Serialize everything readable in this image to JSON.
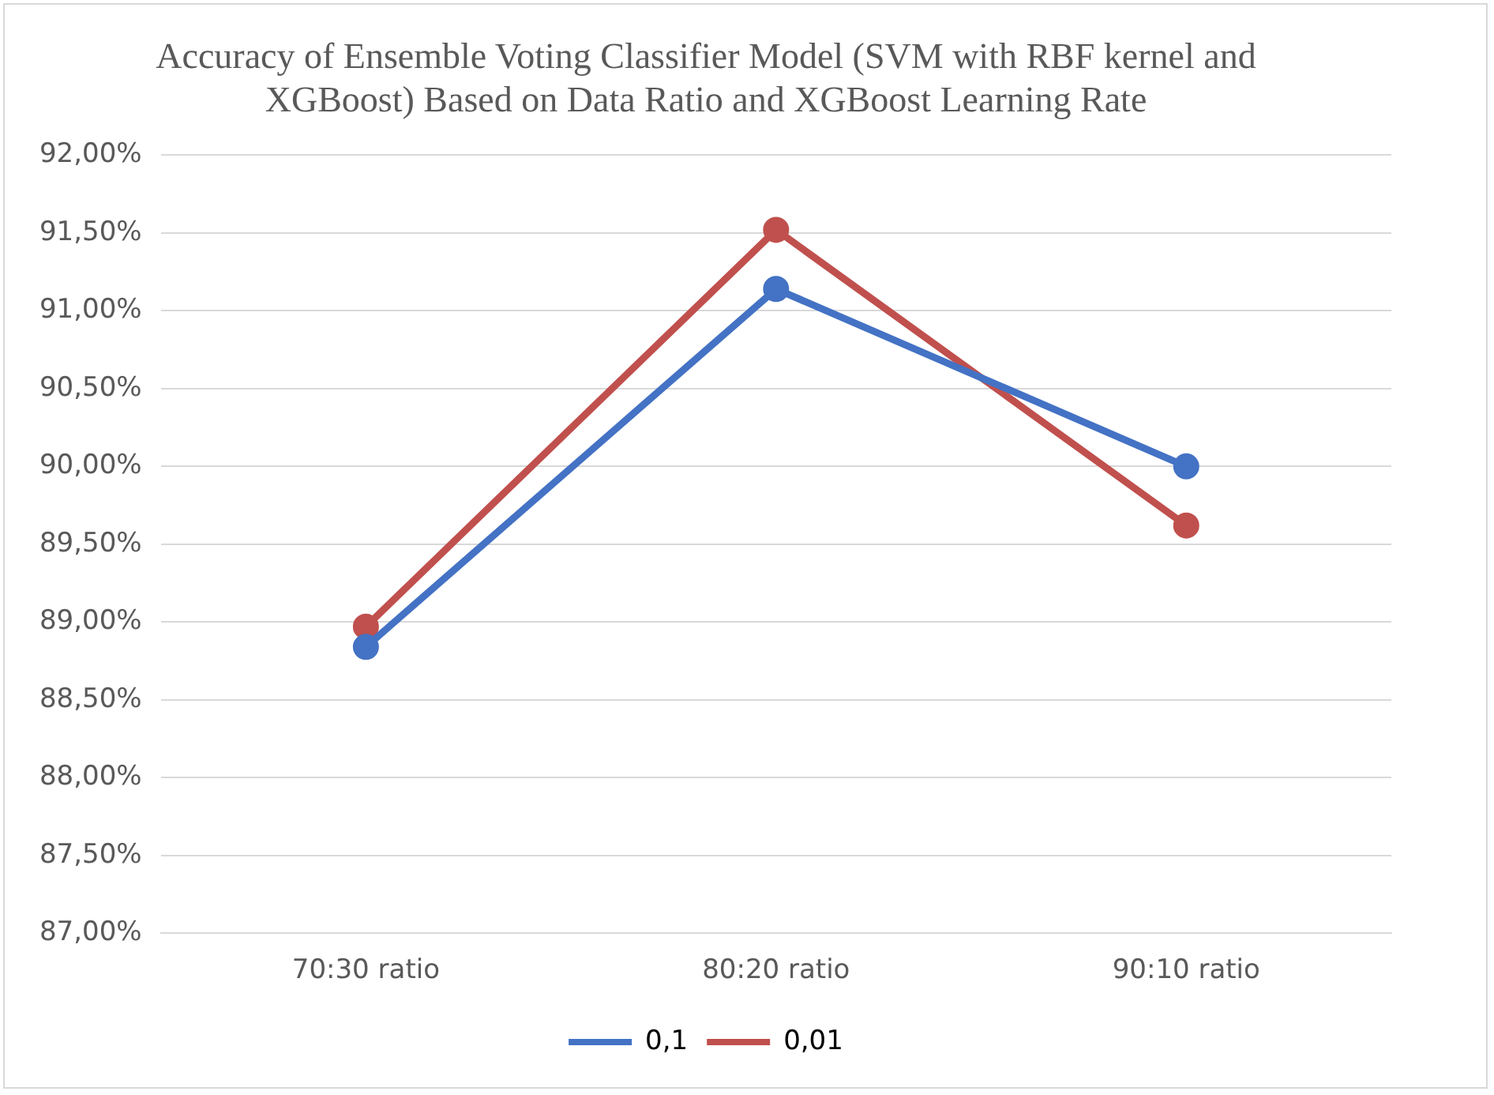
{
  "chart_data": {
    "type": "line",
    "title": "Accuracy of Ensemble Voting Classifier Model (SVM with RBF kernel and XGBoost) Based on Data Ratio and XGBoost Learning Rate",
    "categories": [
      "70:30 ratio",
      "80:20 ratio",
      "90:10 ratio"
    ],
    "series": [
      {
        "name": "0,1",
        "color": "#4472c4",
        "values": [
          88.84,
          91.14,
          90.0
        ]
      },
      {
        "name": "0,01",
        "color": "#c0504d",
        "values": [
          88.97,
          91.52,
          89.62
        ]
      }
    ],
    "ylim": [
      87,
      92
    ],
    "yticks": [
      {
        "value": 87,
        "label": "87,00%"
      },
      {
        "value": 87.5,
        "label": "87,50%"
      },
      {
        "value": 88,
        "label": "88,00%"
      },
      {
        "value": 88.5,
        "label": "88,50%"
      },
      {
        "value": 89,
        "label": "89,00%"
      },
      {
        "value": 89.5,
        "label": "89,50%"
      },
      {
        "value": 90,
        "label": "90,00%"
      },
      {
        "value": 90.5,
        "label": "90,50%"
      },
      {
        "value": 91,
        "label": "91,00%"
      },
      {
        "value": 91.5,
        "label": "91,50%"
      },
      {
        "value": 92,
        "label": "92,00%"
      }
    ],
    "grid": "y",
    "legend": "bottom",
    "marker": "circle",
    "line_style": "solid"
  }
}
